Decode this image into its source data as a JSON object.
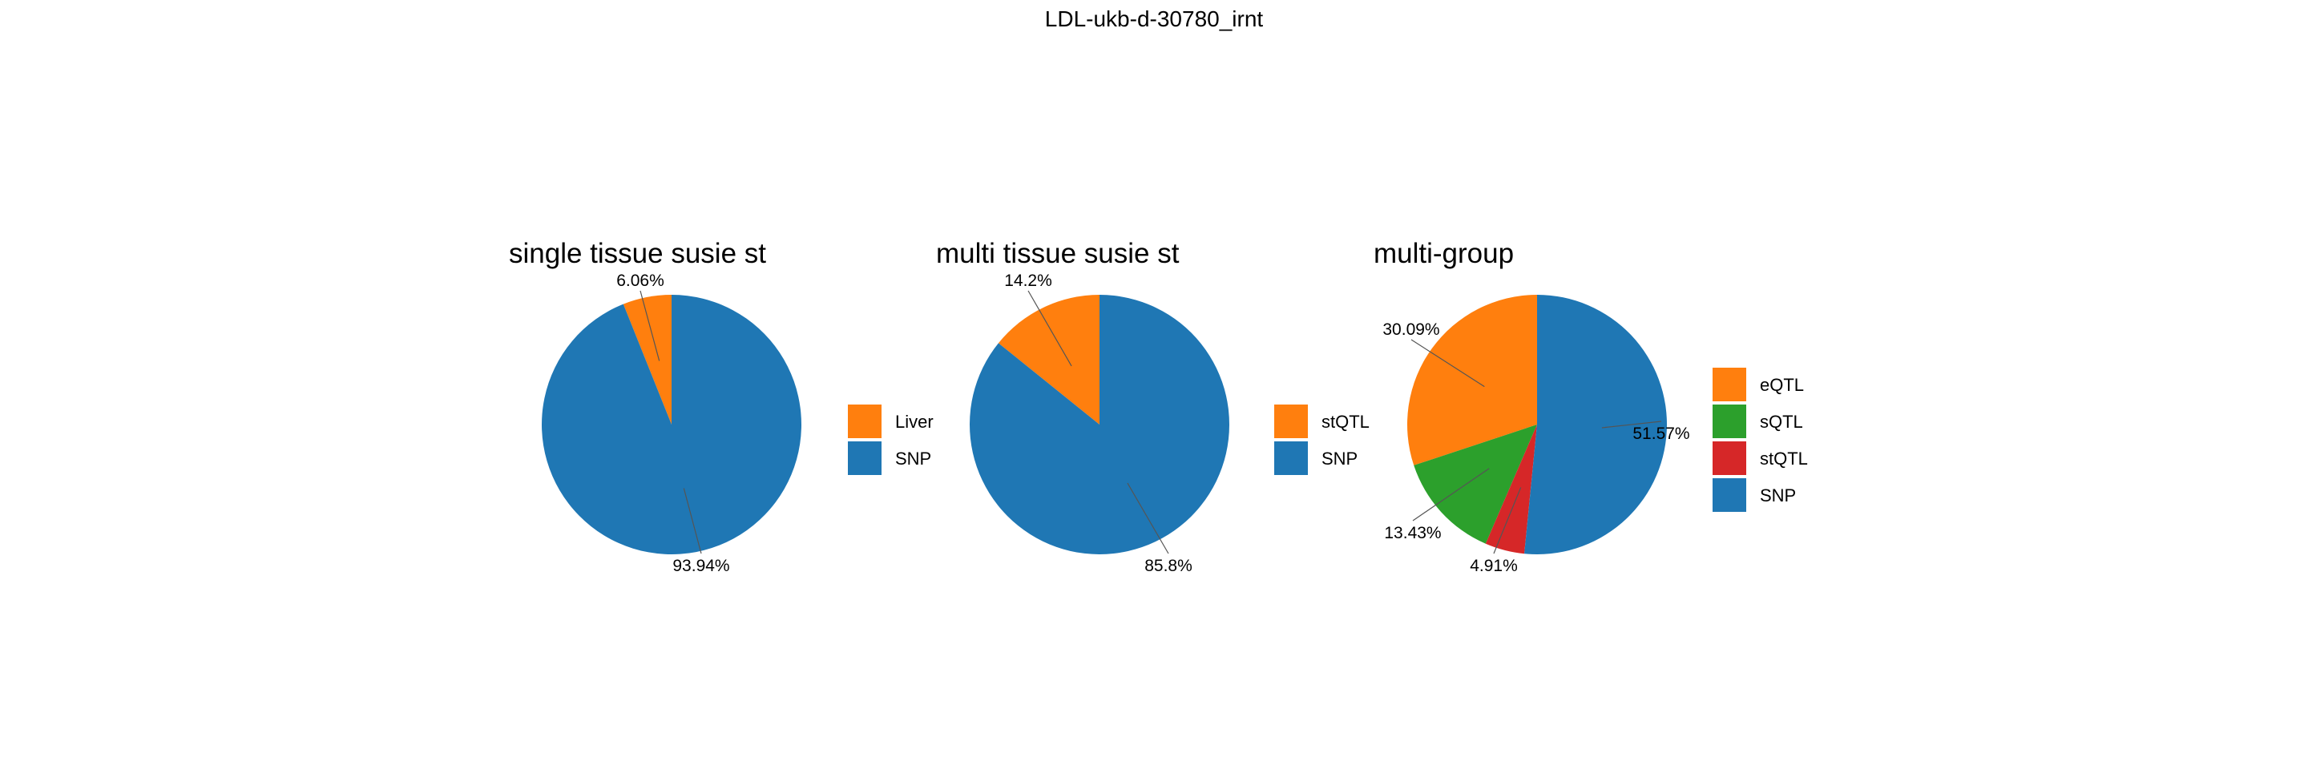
{
  "title": "LDL-ukb-d-30780_irnt",
  "colors": {
    "eQTL": "#ff7f0e",
    "Liver": "#ff7f0e",
    "stQTL_orange": "#ff7f0e",
    "sQTL": "#2ca02c",
    "stQTL_red": "#d62728",
    "SNP": "#1f77b4"
  },
  "chart_data": [
    {
      "type": "pie",
      "title": "single tissue susie st",
      "slices": [
        {
          "name": "Liver",
          "value": 6.06,
          "label": "6.06%",
          "color": "#ff7f0e"
        },
        {
          "name": "SNP",
          "value": 93.94,
          "label": "93.94%",
          "color": "#1f77b4"
        }
      ],
      "legend": [
        {
          "name": "Liver",
          "color": "#ff7f0e"
        },
        {
          "name": "SNP",
          "color": "#1f77b4"
        }
      ],
      "legend_placement": "right"
    },
    {
      "type": "pie",
      "title": "multi tissue susie st",
      "slices": [
        {
          "name": "stQTL",
          "value": 14.2,
          "label": "14.2%",
          "color": "#ff7f0e"
        },
        {
          "name": "SNP",
          "value": 85.8,
          "label": "85.8%",
          "color": "#1f77b4"
        }
      ],
      "legend": [
        {
          "name": "stQTL",
          "color": "#ff7f0e"
        },
        {
          "name": "SNP",
          "color": "#1f77b4"
        }
      ],
      "legend_placement": "right"
    },
    {
      "type": "pie",
      "title": "multi-group",
      "slices": [
        {
          "name": "eQTL",
          "value": 30.09,
          "label": "30.09%",
          "color": "#ff7f0e"
        },
        {
          "name": "sQTL",
          "value": 13.43,
          "label": "13.43%",
          "color": "#2ca02c"
        },
        {
          "name": "stQTL",
          "value": 4.91,
          "label": "4.91%",
          "color": "#d62728"
        },
        {
          "name": "SNP",
          "value": 51.57,
          "label": "51.57%",
          "color": "#1f77b4"
        }
      ],
      "legend": [
        {
          "name": "eQTL",
          "color": "#ff7f0e"
        },
        {
          "name": "sQTL",
          "color": "#2ca02c"
        },
        {
          "name": "stQTL",
          "color": "#d62728"
        },
        {
          "name": "SNP",
          "color": "#1f77b4"
        }
      ],
      "legend_placement": "right"
    }
  ]
}
